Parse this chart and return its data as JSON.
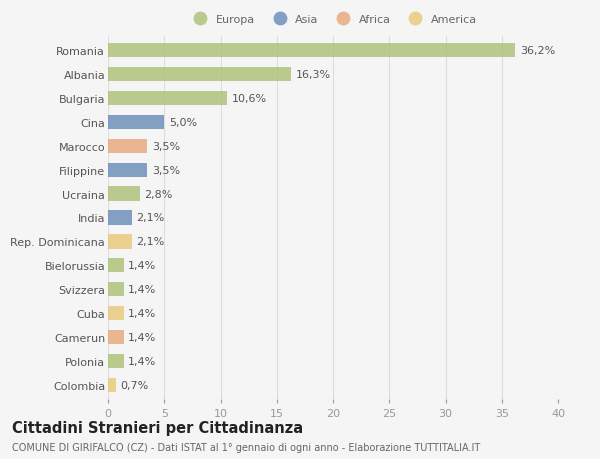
{
  "countries": [
    "Romania",
    "Albania",
    "Bulgaria",
    "Cina",
    "Marocco",
    "Filippine",
    "Ucraina",
    "India",
    "Rep. Dominicana",
    "Bielorussia",
    "Svizzera",
    "Cuba",
    "Camerun",
    "Polonia",
    "Colombia"
  ],
  "values": [
    36.2,
    16.3,
    10.6,
    5.0,
    3.5,
    3.5,
    2.8,
    2.1,
    2.1,
    1.4,
    1.4,
    1.4,
    1.4,
    1.4,
    0.7
  ],
  "labels": [
    "36,2%",
    "16,3%",
    "10,6%",
    "5,0%",
    "3,5%",
    "3,5%",
    "2,8%",
    "2,1%",
    "2,1%",
    "1,4%",
    "1,4%",
    "1,4%",
    "1,4%",
    "1,4%",
    "0,7%"
  ],
  "colors": [
    "#adc178",
    "#adc178",
    "#adc178",
    "#6b8cba",
    "#e8a87c",
    "#6b8cba",
    "#adc178",
    "#6b8cba",
    "#e8c97a",
    "#adc178",
    "#adc178",
    "#e8c97a",
    "#e8a87c",
    "#adc178",
    "#e8c97a"
  ],
  "legend_labels": [
    "Europa",
    "Asia",
    "Africa",
    "America"
  ],
  "legend_colors": [
    "#adc178",
    "#6b8cba",
    "#e8a87c",
    "#e8c97a"
  ],
  "title": "Cittadini Stranieri per Cittadinanza",
  "subtitle": "COMUNE DI GIRIFALCO (CZ) - Dati ISTAT al 1° gennaio di ogni anno - Elaborazione TUTTITALIA.IT",
  "xlim": [
    0,
    40
  ],
  "xticks": [
    0,
    5,
    10,
    15,
    20,
    25,
    30,
    35,
    40
  ],
  "bg_color": "#f5f5f5",
  "grid_color": "#dddddd",
  "bar_height": 0.6,
  "label_fontsize": 8,
  "tick_fontsize": 8,
  "title_fontsize": 10.5,
  "subtitle_fontsize": 7
}
